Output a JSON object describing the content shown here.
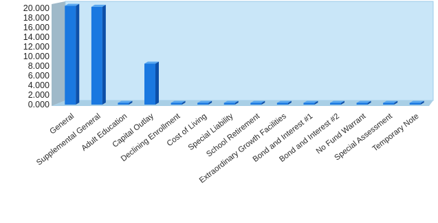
{
  "chart_data": {
    "type": "bar",
    "style": "3d-column",
    "categories": [
      "General",
      "Supplemental General",
      "Adult Education",
      "Capital Outlay",
      "Declining Enrollment",
      "Cost of Living",
      "Special Liability",
      "School Retirement",
      "Extraordinary Growth Facilities",
      "Bond and Interest #1",
      "Bond and Interest #2",
      "No Fund Warrant",
      "Special Assessment",
      "Temporary Note"
    ],
    "values": [
      20.5,
      20.3,
      0,
      8.5,
      0,
      0,
      0,
      0,
      0,
      0,
      0,
      0,
      0,
      0
    ],
    "y_ticks": [
      "0.000",
      "2.000",
      "4.000",
      "6.000",
      "8.000",
      "10.000",
      "12.000",
      "14.000",
      "16.000",
      "18.000",
      "20.000"
    ],
    "ylim": [
      0,
      20
    ],
    "grid": false,
    "legend": "none",
    "colors": {
      "bar_front": "#1a78e0",
      "bar_side": "#0d4fa8",
      "bar_top": "#5aa8f0",
      "wall": "#c9e6f8",
      "floor": "#a9cfe6",
      "left_wall": "#9fb9c9"
    }
  }
}
